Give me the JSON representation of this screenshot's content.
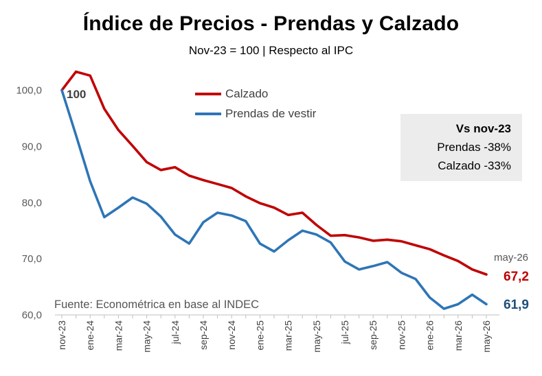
{
  "chart_data": {
    "type": "line",
    "title": "Índice de Precios - Prendas y Calzado",
    "subtitle": "Nov-23 = 100 | Respecto al IPC",
    "x": [
      "nov-23",
      "dic-23",
      "ene-24",
      "feb-24",
      "mar-24",
      "abr-24",
      "may-24",
      "jun-24",
      "jul-24",
      "ago-24",
      "sep-24",
      "oct-24",
      "nov-24",
      "dic-24",
      "ene-25",
      "feb-25",
      "mar-25",
      "abr-25",
      "may-25",
      "jun-25",
      "jul-25",
      "ago-25",
      "sep-25",
      "oct-25",
      "nov-25",
      "dic-25",
      "ene-26",
      "feb-26",
      "mar-26",
      "abr-26",
      "may-26"
    ],
    "tick_labels": [
      "nov-23",
      "ene-24",
      "mar-24",
      "may-24",
      "jul-24",
      "sep-24",
      "nov-24",
      "ene-25",
      "mar-25",
      "may-25",
      "jul-25",
      "sep-25",
      "nov-25",
      "ene-26",
      "mar-26",
      "may-26"
    ],
    "y_ticks": [
      "60,0",
      "70,0",
      "80,0",
      "90,0",
      "100,0"
    ],
    "ylim": [
      60,
      100
    ],
    "series": [
      {
        "name": "Calzado",
        "color": "#c00000",
        "values": [
          100,
          103.3,
          102.6,
          96.7,
          92.9,
          90.1,
          87.2,
          85.8,
          86.3,
          84.8,
          84.0,
          83.3,
          82.6,
          81.1,
          79.9,
          79.1,
          77.8,
          78.2,
          76.0,
          74.1,
          74.2,
          73.8,
          73.2,
          73.4,
          73.1,
          72.4,
          71.7,
          70.6,
          69.6,
          68.1,
          67.2
        ]
      },
      {
        "name": "Prendas de vestir",
        "color": "#2e75b6",
        "values": [
          100,
          92.0,
          83.8,
          77.4,
          79.1,
          80.9,
          79.8,
          77.5,
          74.3,
          72.7,
          76.5,
          78.2,
          77.7,
          76.7,
          72.7,
          71.3,
          73.3,
          75.0,
          74.3,
          72.9,
          69.5,
          68.1,
          68.7,
          69.4,
          67.5,
          66.4,
          63.1,
          61.1,
          61.9,
          63.6,
          61.9
        ]
      }
    ],
    "annotations": {
      "start_label": "100",
      "box_heading": "Vs nov-23",
      "box_line1": "Prendas -38%",
      "box_line2": "Calzado -33%",
      "last_date": "may-26",
      "last_calzado": "67,2",
      "last_prendas": "61,9",
      "source": "Fuente: Econométrica en base al INDEC"
    }
  }
}
